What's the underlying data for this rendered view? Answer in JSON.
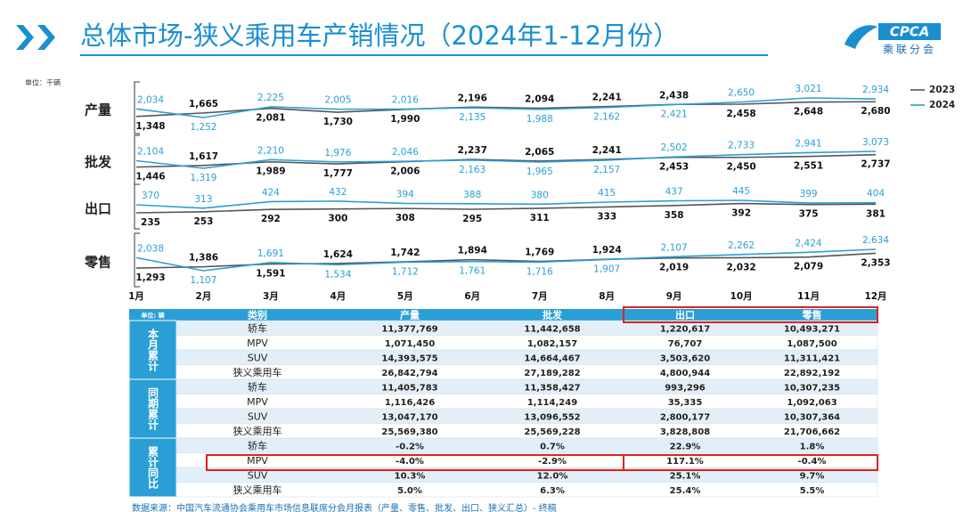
{
  "title": "总体市场-狭义乘用车产销情况（2024年1-12月份）",
  "logo": {
    "name": "CPCA",
    "subname": "乘联分会"
  },
  "unit": "单位：千辆",
  "chart_data": [
    {
      "type": "line",
      "title": "产量",
      "series": [
        {
          "name": "2023",
          "color": "#555555",
          "values": [
            1348,
            1665,
            2081,
            1730,
            1990,
            2196,
            2094,
            2241,
            2438,
            2458,
            2648,
            2680
          ],
          "value_labels": [
            "1,348",
            "1,665",
            "2,081",
            "1,730",
            "1,990",
            "2,196",
            "2,094",
            "2,241",
            "2,438",
            "2,458",
            "2,648",
            "2,680"
          ]
        },
        {
          "name": "2024",
          "color": "#2a9fd6",
          "values": [
            2034,
            1252,
            2225,
            2005,
            2016,
            2135,
            1988,
            2162,
            2421,
            2650,
            3021,
            2934
          ],
          "value_labels": [
            "2,034",
            "1,252",
            "2,225",
            "2,005",
            "2,016",
            "2,135",
            "1,988",
            "2,162",
            "2,421",
            "2,650",
            "3,021",
            "2,934"
          ]
        }
      ]
    },
    {
      "type": "line",
      "title": "批发",
      "series": [
        {
          "color": "#555555",
          "values": [
            1446,
            1617,
            1989,
            1777,
            2006,
            2237,
            2065,
            2241,
            2453,
            2450,
            2551,
            2737
          ],
          "value_labels": [
            "1,446",
            "1,617",
            "1,989",
            "1,777",
            "2,006",
            "2,237",
            "2,065",
            "2,241",
            "2,453",
            "2,450",
            "2,551",
            "2,737"
          ]
        },
        {
          "color": "#2a9fd6",
          "values": [
            2104,
            1319,
            2210,
            1976,
            2046,
            2163,
            1965,
            2157,
            2502,
            2733,
            2941,
            3073
          ],
          "value_labels": [
            "2,104",
            "1,319",
            "2,210",
            "1,976",
            "2,046",
            "2,163",
            "1,965",
            "2,157",
            "2,502",
            "2,733",
            "2,941",
            "3,073"
          ]
        }
      ]
    },
    {
      "type": "line",
      "title": "出口",
      "series": [
        {
          "color": "#555555",
          "values": [
            235,
            253,
            292,
            300,
            308,
            295,
            311,
            333,
            358,
            392,
            375,
            381
          ]
        },
        {
          "color": "#2a9fd6",
          "values": [
            370,
            313,
            424,
            432,
            394,
            388,
            380,
            415,
            437,
            445,
            399,
            404
          ]
        }
      ]
    },
    {
      "type": "line",
      "title": "零售",
      "categories": [
        "1月",
        "2月",
        "3月",
        "4月",
        "5月",
        "6月",
        "7月",
        "8月",
        "9月",
        "10月",
        "11月",
        "12月"
      ],
      "series": [
        {
          "color": "#555555",
          "values": [
            1293,
            1386,
            1591,
            1624,
            1742,
            1894,
            1769,
            1924,
            2019,
            2032,
            2079,
            2353
          ],
          "value_labels": [
            "1,293",
            "1,386",
            "1,591",
            "1,624",
            "1,742",
            "1,894",
            "1,769",
            "1,924",
            "2,019",
            "2,032",
            "2,079",
            "2,353"
          ]
        },
        {
          "color": "#2a9fd6",
          "values": [
            2038,
            1107,
            1691,
            1534,
            1712,
            1761,
            1716,
            1907,
            2107,
            2262,
            2424,
            2634
          ],
          "value_labels": [
            "2,038",
            "1,107",
            "1,691",
            "1,534",
            "1,712",
            "1,761",
            "1,716",
            "1,907",
            "2,107",
            "2,262",
            "2,424",
            "2,634"
          ]
        }
      ]
    }
  ],
  "table": {
    "header": [
      "单位: 辆",
      "类别",
      "产量",
      "批发",
      "出口",
      "零售"
    ],
    "groups": [
      {
        "label": "本月累计",
        "rows": [
          [
            "轿车",
            "11,377,769",
            "11,442,658",
            "1,220,617",
            "10,493,271"
          ],
          [
            "MPV",
            "1,071,450",
            "1,082,157",
            "76,707",
            "1,087,500"
          ],
          [
            "SUV",
            "14,393,575",
            "14,664,467",
            "3,503,620",
            "11,311,421"
          ],
          [
            "狭义乘用车",
            "26,842,794",
            "27,189,282",
            "4,800,944",
            "22,892,192"
          ]
        ]
      },
      {
        "label": "同期累计",
        "rows": [
          [
            "轿车",
            "11,405,783",
            "11,358,427",
            "993,296",
            "10,307,235"
          ],
          [
            "MPV",
            "1,116,426",
            "1,114,249",
            "35,335",
            "1,092,063"
          ],
          [
            "SUV",
            "13,047,170",
            "13,096,552",
            "2,800,177",
            "10,307,364"
          ],
          [
            "狭义乘用车",
            "25,569,380",
            "25,569,228",
            "3,828,808",
            "21,706,662"
          ]
        ]
      },
      {
        "label": "累计同比",
        "rows": [
          [
            "轿车",
            "-0.2%",
            "0.7%",
            "22.9%",
            "1.8%"
          ],
          [
            "MPV",
            "-4.0%",
            "-2.9%",
            "117.1%",
            "-0.4%"
          ],
          [
            "SUV",
            "10.3%",
            "12.0%",
            "25.1%",
            "9.7%"
          ],
          [
            "狭义乘用车",
            "5.0%",
            "6.3%",
            "25.4%",
            "5.5%"
          ]
        ]
      }
    ]
  },
  "source": "数据来源：中国汽车流通协会乘用车市场信息联席分会月报表（产量、零售、批发、出口、狭义汇总）- 终稿"
}
